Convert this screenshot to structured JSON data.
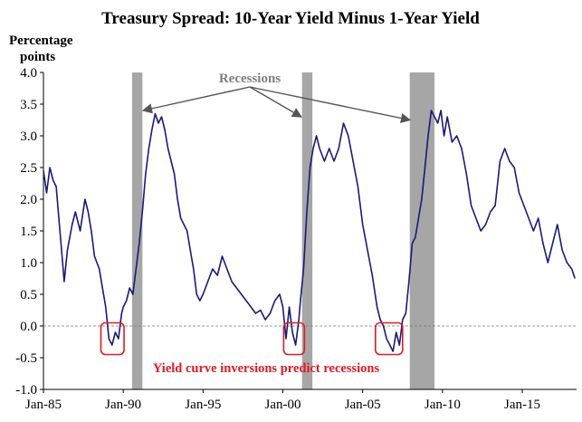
{
  "chart_data": {
    "type": "line",
    "title": "Treasury Spread: 10-Year Yield Minus 1-Year Yield",
    "ylabel_line1": "Percentage",
    "ylabel_line2": "points",
    "xlabel": "",
    "ylim": [
      -1.0,
      4.0
    ],
    "xlim": [
      1985.0,
      2018.4
    ],
    "y_ticks": [
      "4.0",
      "3.5",
      "3.0",
      "2.5",
      "2.0",
      "1.5",
      "1.0",
      "0.5",
      "0.0",
      "-0.5",
      "-1.0"
    ],
    "x_ticks": [
      {
        "label": "Jan-85",
        "x": 1985
      },
      {
        "label": "Jan-90",
        "x": 1990
      },
      {
        "label": "Jan-95",
        "x": 1995
      },
      {
        "label": "Jan-00",
        "x": 2000
      },
      {
        "label": "Jan-05",
        "x": 2005
      },
      {
        "label": "Jan-10",
        "x": 2010
      },
      {
        "label": "Jan-15",
        "x": 2015
      }
    ],
    "grid": false,
    "zero_line": "dashed",
    "recessions": [
      {
        "start": 1990.55,
        "end": 1991.2
      },
      {
        "start": 2001.2,
        "end": 2001.85
      },
      {
        "start": 2007.95,
        "end": 2009.5
      }
    ],
    "recession_label": "Recessions",
    "inversion_label": "Yield curve inversions predict recessions",
    "inversion_boxes": [
      {
        "x_start": 1988.6,
        "x_end": 1990.05,
        "y_top": 0.05,
        "y_bottom": -0.45
      },
      {
        "x_start": 2000.05,
        "x_end": 2001.35,
        "y_top": 0.05,
        "y_bottom": -0.45
      },
      {
        "x_start": 2005.8,
        "x_end": 2007.5,
        "y_top": 0.05,
        "y_bottom": -0.45
      }
    ],
    "series": [
      {
        "color": "#1a1a7a",
        "x": [
          1985.0,
          1985.2,
          1985.4,
          1985.6,
          1985.8,
          1986.0,
          1986.2,
          1986.3,
          1986.5,
          1986.8,
          1987.0,
          1987.3,
          1987.6,
          1987.8,
          1988.0,
          1988.2,
          1988.5,
          1988.7,
          1988.9,
          1989.1,
          1989.3,
          1989.5,
          1989.7,
          1989.9,
          1990.0,
          1990.2,
          1990.4,
          1990.6,
          1990.8,
          1991.0,
          1991.2,
          1991.4,
          1991.6,
          1991.8,
          1992.0,
          1992.2,
          1992.4,
          1992.6,
          1992.8,
          1993.0,
          1993.2,
          1993.4,
          1993.6,
          1993.8,
          1994.0,
          1994.2,
          1994.4,
          1994.6,
          1994.8,
          1995.0,
          1995.3,
          1995.6,
          1995.9,
          1996.2,
          1996.5,
          1996.8,
          1997.1,
          1997.4,
          1997.7,
          1998.0,
          1998.3,
          1998.6,
          1998.9,
          1999.2,
          1999.5,
          1999.8,
          2000.0,
          2000.2,
          2000.4,
          2000.6,
          2000.8,
          2001.0,
          2001.1,
          2001.3,
          2001.5,
          2001.7,
          2001.9,
          2002.1,
          2002.3,
          2002.6,
          2002.9,
          2003.2,
          2003.5,
          2003.8,
          2004.1,
          2004.4,
          2004.7,
          2005.0,
          2005.3,
          2005.6,
          2005.9,
          2006.1,
          2006.3,
          2006.5,
          2006.7,
          2006.9,
          2007.1,
          2007.3,
          2007.5,
          2007.7,
          2007.9,
          2008.1,
          2008.3,
          2008.5,
          2008.7,
          2008.9,
          2009.1,
          2009.3,
          2009.5,
          2009.7,
          2009.9,
          2010.1,
          2010.3,
          2010.6,
          2010.9,
          2011.2,
          2011.5,
          2011.8,
          2012.1,
          2012.4,
          2012.7,
          2013.0,
          2013.3,
          2013.6,
          2013.9,
          2014.2,
          2014.5,
          2014.8,
          2015.1,
          2015.4,
          2015.7,
          2016.0,
          2016.3,
          2016.6,
          2016.9,
          2017.2,
          2017.5,
          2017.8,
          2018.1,
          2018.3
        ],
        "y": [
          2.45,
          2.1,
          2.5,
          2.3,
          2.2,
          1.6,
          1.0,
          0.7,
          1.2,
          1.6,
          1.8,
          1.5,
          2.0,
          1.8,
          1.5,
          1.1,
          0.9,
          0.6,
          0.3,
          -0.2,
          -0.3,
          -0.1,
          -0.2,
          0.2,
          0.3,
          0.4,
          0.6,
          0.5,
          0.9,
          1.3,
          1.8,
          2.4,
          2.8,
          3.1,
          3.35,
          3.2,
          3.3,
          3.1,
          2.8,
          2.6,
          2.4,
          2.0,
          1.7,
          1.6,
          1.5,
          1.2,
          0.9,
          0.5,
          0.4,
          0.5,
          0.7,
          0.9,
          0.8,
          1.1,
          0.9,
          0.7,
          0.6,
          0.5,
          0.4,
          0.3,
          0.2,
          0.25,
          0.1,
          0.2,
          0.4,
          0.5,
          0.3,
          -0.2,
          0.3,
          -0.1,
          -0.3,
          0.1,
          0.4,
          0.9,
          1.8,
          2.5,
          2.8,
          3.0,
          2.8,
          2.6,
          2.8,
          2.6,
          2.8,
          3.2,
          3.0,
          2.6,
          2.2,
          1.6,
          1.2,
          0.8,
          0.3,
          0.1,
          0.0,
          -0.2,
          -0.3,
          -0.4,
          -0.1,
          -0.3,
          0.1,
          0.2,
          0.7,
          1.3,
          1.4,
          1.7,
          2.0,
          2.5,
          3.0,
          3.4,
          3.3,
          3.2,
          3.4,
          3.0,
          3.3,
          2.9,
          3.0,
          2.8,
          2.4,
          1.9,
          1.7,
          1.5,
          1.6,
          1.8,
          1.9,
          2.6,
          2.8,
          2.6,
          2.5,
          2.1,
          1.9,
          1.7,
          1.5,
          1.7,
          1.3,
          1.0,
          1.3,
          1.6,
          1.2,
          1.0,
          0.9,
          0.75
        ]
      }
    ]
  }
}
